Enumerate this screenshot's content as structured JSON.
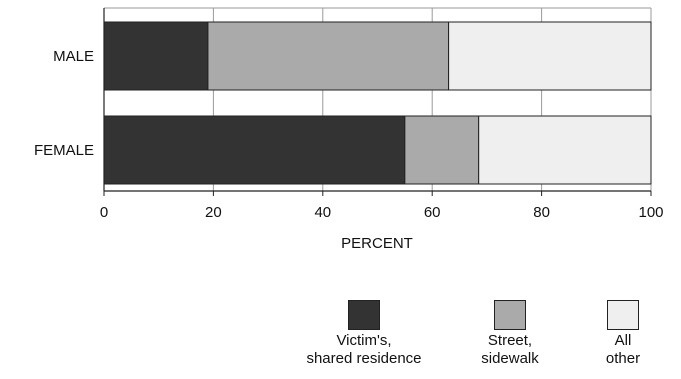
{
  "chart_data": {
    "type": "bar",
    "orientation": "horizontal",
    "stacked": true,
    "categories": [
      "MALE",
      "FEMALE"
    ],
    "series": [
      {
        "name": "Victim's, shared residence",
        "values": [
          19,
          55
        ],
        "color": "#333333"
      },
      {
        "name": "Street, sidewalk",
        "values": [
          44,
          13.5
        ],
        "color": "#aaaaaa"
      },
      {
        "name": "All other",
        "values": [
          37,
          31.5
        ],
        "color": "#efefef"
      }
    ],
    "xlabel": "PERCENT",
    "xlim": [
      0,
      100
    ],
    "xticks": [
      "0",
      "20",
      "40",
      "60",
      "80",
      "100"
    ],
    "grid": true,
    "legend_position": "bottom-right"
  },
  "legend": {
    "items": [
      {
        "line1": "Victim's,",
        "line2": "shared residence"
      },
      {
        "line1": "Street,",
        "line2": "sidewalk"
      },
      {
        "line1": "All",
        "line2": "other"
      }
    ]
  }
}
